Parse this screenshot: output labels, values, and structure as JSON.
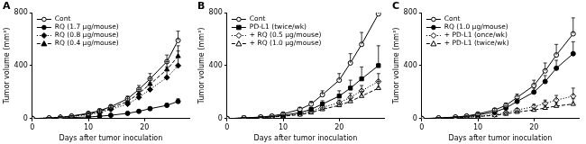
{
  "chart_data": [
    {
      "type": "line",
      "title": "A",
      "x_label": "Days after tumor inoculation",
      "y_label": "Tumor volume (mm³)",
      "x": [
        0,
        3,
        5,
        7,
        10,
        12,
        14,
        17,
        19,
        21,
        24,
        26
      ],
      "xlim": [
        0,
        28
      ],
      "xticks": [
        0,
        10,
        20
      ],
      "ylim": [
        0,
        800
      ],
      "yticks": [
        0,
        400,
        800
      ],
      "grid": false,
      "legend": "upper left",
      "series": [
        {
          "name": "Cont",
          "color": "#000000",
          "marker": "circle-open",
          "line_style": "solid",
          "values": [
            0,
            5,
            10,
            20,
            40,
            60,
            90,
            150,
            220,
            300,
            430,
            590
          ],
          "errors": [
            0,
            2,
            3,
            5,
            8,
            12,
            15,
            20,
            30,
            40,
            50,
            70
          ]
        },
        {
          "name": "RQ (1.7 µg/mouse)",
          "color": "#000000",
          "marker": "circle",
          "line_style": "solid",
          "values": [
            0,
            3,
            5,
            8,
            12,
            18,
            25,
            40,
            55,
            75,
            100,
            130
          ],
          "errors": [
            0,
            1,
            2,
            3,
            4,
            5,
            6,
            8,
            10,
            12,
            15,
            20
          ]
        },
        {
          "name": "RQ (0.8 µg/mouse)",
          "color": "#000000",
          "marker": "diamond",
          "line_style": "dotted",
          "values": [
            0,
            5,
            10,
            15,
            30,
            45,
            70,
            110,
            160,
            220,
            310,
            400
          ],
          "errors": [
            0,
            2,
            3,
            4,
            6,
            10,
            15,
            20,
            30,
            50,
            80,
            110
          ]
        },
        {
          "name": "RQ (0.4 µg/mouse)",
          "color": "#000000",
          "marker": "triangle",
          "line_style": "dashed",
          "values": [
            0,
            5,
            10,
            18,
            35,
            55,
            80,
            130,
            190,
            260,
            370,
            470
          ],
          "errors": [
            0,
            2,
            3,
            4,
            7,
            10,
            15,
            20,
            30,
            40,
            60,
            80
          ]
        }
      ]
    },
    {
      "type": "line",
      "title": "B",
      "x_label": "Days after tumor inoculation",
      "y_label": "Tumor volume (mm³)",
      "x": [
        0,
        3,
        6,
        8,
        10,
        13,
        15,
        17,
        20,
        22,
        24,
        27
      ],
      "xlim": [
        0,
        28
      ],
      "xticks": [
        0,
        10,
        20
      ],
      "ylim": [
        0,
        800
      ],
      "yticks": [
        0,
        400,
        800
      ],
      "grid": false,
      "legend": "upper left",
      "series": [
        {
          "name": "Cont",
          "color": "#000000",
          "marker": "circle-open",
          "line_style": "solid",
          "values": [
            0,
            5,
            12,
            20,
            35,
            70,
            110,
            180,
            290,
            420,
            560,
            790
          ],
          "errors": [
            0,
            2,
            3,
            5,
            8,
            15,
            20,
            30,
            50,
            70,
            90,
            150
          ]
        },
        {
          "name": "PD-L1 (twice/wk)",
          "color": "#000000",
          "marker": "square",
          "line_style": "solid",
          "values": [
            0,
            5,
            10,
            15,
            25,
            45,
            70,
            110,
            170,
            230,
            300,
            400
          ],
          "errors": [
            0,
            2,
            3,
            4,
            6,
            10,
            15,
            25,
            40,
            60,
            90,
            150
          ]
        },
        {
          "name": "+ RQ (0.5 µg/mouse)",
          "color": "#000000",
          "marker": "diamond-open",
          "line_style": "dotted",
          "values": [
            0,
            4,
            8,
            12,
            20,
            35,
            55,
            85,
            120,
            160,
            210,
            280
          ],
          "errors": [
            0,
            1,
            2,
            3,
            5,
            8,
            10,
            15,
            20,
            30,
            40,
            60
          ]
        },
        {
          "name": "+ RQ (1.0 µg/mouse)",
          "color": "#000000",
          "marker": "triangle-open",
          "line_style": "dashed",
          "values": [
            0,
            4,
            8,
            12,
            18,
            30,
            45,
            70,
            100,
            130,
            170,
            230
          ],
          "errors": [
            0,
            1,
            2,
            3,
            4,
            6,
            8,
            12,
            18,
            25,
            35,
            50
          ]
        }
      ]
    },
    {
      "type": "line",
      "title": "C",
      "x_label": "Days after tumor inoculation",
      "y_label": "Tumor volume (mm³)",
      "x": [
        0,
        3,
        6,
        8,
        10,
        13,
        15,
        17,
        20,
        22,
        24,
        27
      ],
      "xlim": [
        0,
        28
      ],
      "xticks": [
        0,
        10,
        20
      ],
      "ylim": [
        0,
        800
      ],
      "yticks": [
        0,
        400,
        800
      ],
      "grid": false,
      "legend": "upper left",
      "series": [
        {
          "name": "Cont",
          "color": "#000000",
          "marker": "circle-open",
          "line_style": "solid",
          "values": [
            0,
            5,
            12,
            20,
            35,
            65,
            100,
            160,
            250,
            360,
            480,
            640
          ],
          "errors": [
            0,
            2,
            3,
            5,
            8,
            12,
            18,
            25,
            40,
            60,
            80,
            120
          ]
        },
        {
          "name": "RQ (1.0 µg/mouse)",
          "color": "#000000",
          "marker": "circle",
          "line_style": "solid",
          "values": [
            0,
            4,
            10,
            16,
            28,
            50,
            80,
            130,
            200,
            280,
            380,
            490
          ],
          "errors": [
            0,
            2,
            3,
            4,
            6,
            10,
            15,
            20,
            30,
            45,
            60,
            90
          ]
        },
        {
          "name": "+ PD-L1 (once/wk)",
          "color": "#000000",
          "marker": "diamond-open",
          "line_style": "dotted",
          "values": [
            0,
            4,
            8,
            12,
            18,
            30,
            45,
            65,
            90,
            115,
            140,
            170
          ],
          "errors": [
            0,
            1,
            2,
            3,
            4,
            6,
            8,
            12,
            18,
            25,
            35,
            60
          ]
        },
        {
          "name": "+ PD-L1 (twice/wk)",
          "color": "#000000",
          "marker": "triangle-open",
          "line_style": "dashed",
          "values": [
            0,
            3,
            6,
            10,
            15,
            25,
            35,
            50,
            65,
            80,
            95,
            110
          ],
          "errors": [
            0,
            1,
            2,
            2,
            3,
            5,
            7,
            10,
            15,
            20,
            25,
            40
          ]
        }
      ]
    }
  ]
}
